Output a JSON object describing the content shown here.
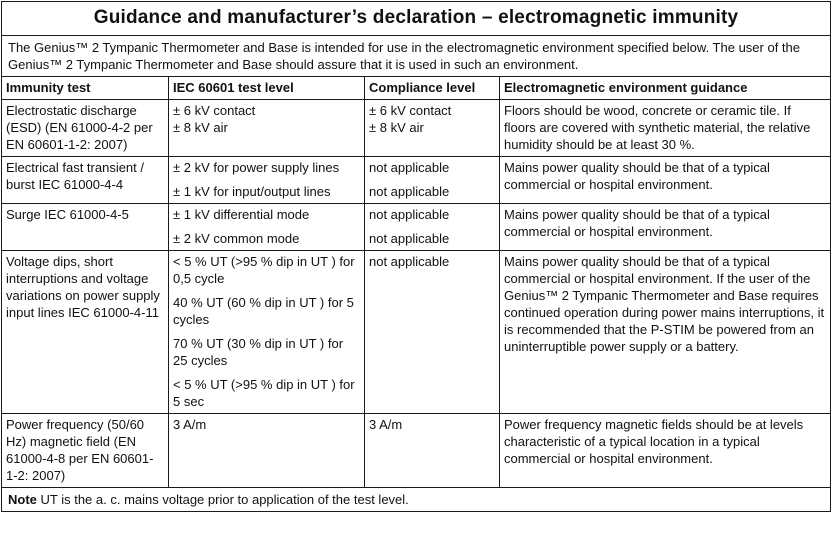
{
  "title": "Guidance and manufacturer’s declaration – electromagnetic immunity",
  "intro": "The Genius™ 2 Tympanic Thermometer and Base is intended for use in the electromagnetic environment specified below. The user of the Genius™ 2 Tympanic Thermometer and Base should assure that it is used in such an environment.",
  "headers": {
    "immunity_test": "Immunity test",
    "test_level": "IEC 60601 test level",
    "compliance_level": "Compliance level",
    "guidance": "Electromagnetic environment guidance"
  },
  "rows": {
    "esd": {
      "test": "Electrostatic discharge (ESD) (EN 61000-4-2 per EN 60601-1-2: 2007)",
      "level_1": "± 6 kV contact",
      "level_2": "± 8 kV air",
      "compliance_1": "± 6 kV contact",
      "compliance_2": "± 8 kV air",
      "guidance": "Floors should be wood, concrete or ceramic tile. If floors are covered with synthetic material, the relative humidity should be at least 30 %."
    },
    "eft": {
      "test": "Electrical fast transient / burst IEC 61000-4-4",
      "level_1": "± 2 kV for power supply lines",
      "level_2": "± 1 kV for input/output lines",
      "compliance_1": "not applicable",
      "compliance_2": "not applicable",
      "guidance": "Mains power quality should be that of a typical commercial or hospital environment."
    },
    "surge": {
      "test": "Surge IEC 61000-4-5",
      "level_1": "± 1 kV differential mode",
      "level_2": "± 2 kV common mode",
      "compliance_1": "not applicable",
      "compliance_2": "not applicable",
      "guidance": "Mains power quality should be that of a typical commercial or hospital environment."
    },
    "dips": {
      "test": "Voltage dips, short interruptions and voltage variations on power supply input lines IEC 61000-4-11",
      "level_1": "< 5 % UT (>95 % dip in UT ) for 0,5 cycle",
      "level_2": "40 % UT (60 % dip in UT ) for 5 cycles",
      "level_3": "70 % UT (30 % dip in UT ) for 25 cycles",
      "level_4": "< 5 % UT (>95 % dip in UT ) for 5 sec",
      "compliance": "not applicable",
      "guidance": "Mains power quality should be that of a typical commercial or hospital environment. If the user of the Genius™ 2 Tympanic Thermometer and Base requires continued operation during power mains interruptions, it is recommended that the P-STIM be powered from an uninterruptible power supply or a battery."
    },
    "power_freq": {
      "test": "Power frequency (50/60 Hz) magnetic field (EN 61000-4-8 per EN 60601-1-2: 2007)",
      "level": "3 A/m",
      "compliance": "3 A/m",
      "guidance": "Power frequency magnetic fields should be at levels characteristic of a typical location in a typical commercial or hospital environment."
    }
  },
  "note": {
    "label": "Note",
    "text": " UT is the a. c. mains voltage prior to application of the test level."
  }
}
